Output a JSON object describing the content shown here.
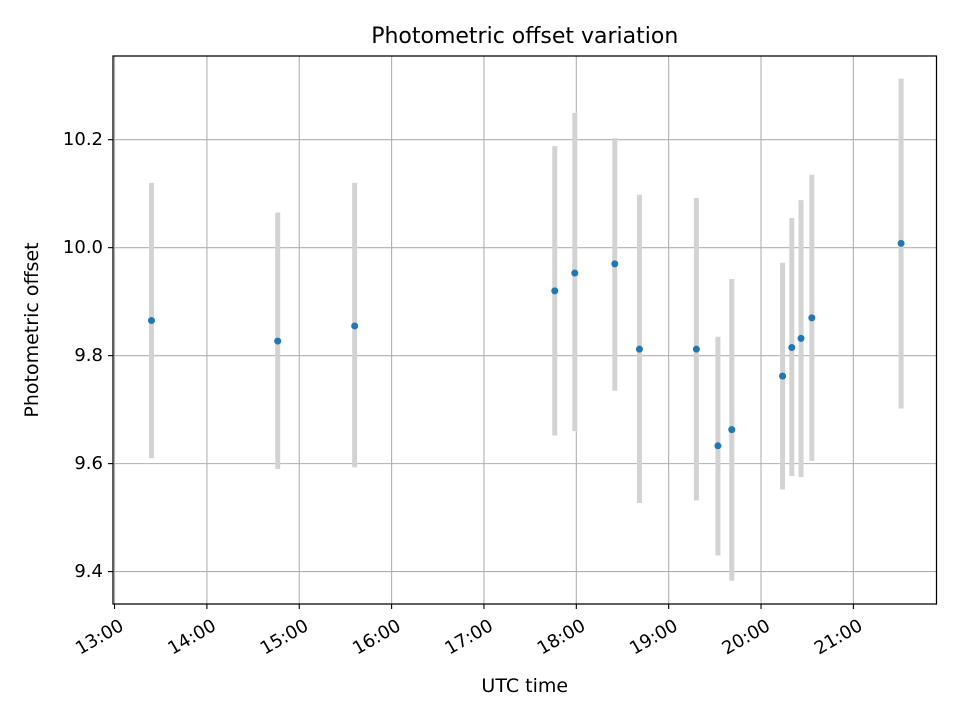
{
  "chart_data": {
    "type": "scatter",
    "title": "Photometric offset variation",
    "xlabel": "UTC time",
    "ylabel": "Photometric offset",
    "x_axis_kind": "time of day",
    "xlim": [
      "12:59",
      "21:54"
    ],
    "ylim": [
      9.34,
      10.355
    ],
    "x_ticks": [
      "13:00",
      "14:00",
      "15:00",
      "16:00",
      "17:00",
      "18:00",
      "19:00",
      "20:00",
      "21:00"
    ],
    "y_ticks": [
      9.4,
      9.6,
      9.8,
      10.0,
      10.2
    ],
    "y_tick_labels": [
      "9.4",
      "9.6",
      "9.8",
      "10.0",
      "10.2"
    ],
    "grid": true,
    "series": [
      {
        "marker_color": "#1f77b4",
        "errorbar_color": "#d3d3d3",
        "points": [
          {
            "x": "13:24",
            "y": 9.865,
            "ylow": 9.61,
            "yhigh": 10.12
          },
          {
            "x": "14:46",
            "y": 9.827,
            "ylow": 9.59,
            "yhigh": 10.065
          },
          {
            "x": "15:36",
            "y": 9.855,
            "ylow": 9.593,
            "yhigh": 10.12
          },
          {
            "x": "17:46",
            "y": 9.92,
            "ylow": 9.652,
            "yhigh": 10.188
          },
          {
            "x": "17:59",
            "y": 9.953,
            "ylow": 9.66,
            "yhigh": 10.25
          },
          {
            "x": "18:25",
            "y": 9.97,
            "ylow": 9.735,
            "yhigh": 10.203
          },
          {
            "x": "18:41",
            "y": 9.812,
            "ylow": 9.527,
            "yhigh": 10.098
          },
          {
            "x": "19:18",
            "y": 9.812,
            "ylow": 9.532,
            "yhigh": 10.092
          },
          {
            "x": "19:32",
            "y": 9.633,
            "ylow": 9.43,
            "yhigh": 9.835
          },
          {
            "x": "19:41",
            "y": 9.663,
            "ylow": 9.383,
            "yhigh": 9.942
          },
          {
            "x": "20:14",
            "y": 9.762,
            "ylow": 9.552,
            "yhigh": 9.972
          },
          {
            "x": "20:20",
            "y": 9.815,
            "ylow": 9.577,
            "yhigh": 10.055
          },
          {
            "x": "20:26",
            "y": 9.832,
            "ylow": 9.575,
            "yhigh": 10.088
          },
          {
            "x": "20:33",
            "y": 9.87,
            "ylow": 9.605,
            "yhigh": 10.135
          },
          {
            "x": "21:31",
            "y": 10.008,
            "ylow": 9.702,
            "yhigh": 10.313
          }
        ]
      }
    ]
  }
}
